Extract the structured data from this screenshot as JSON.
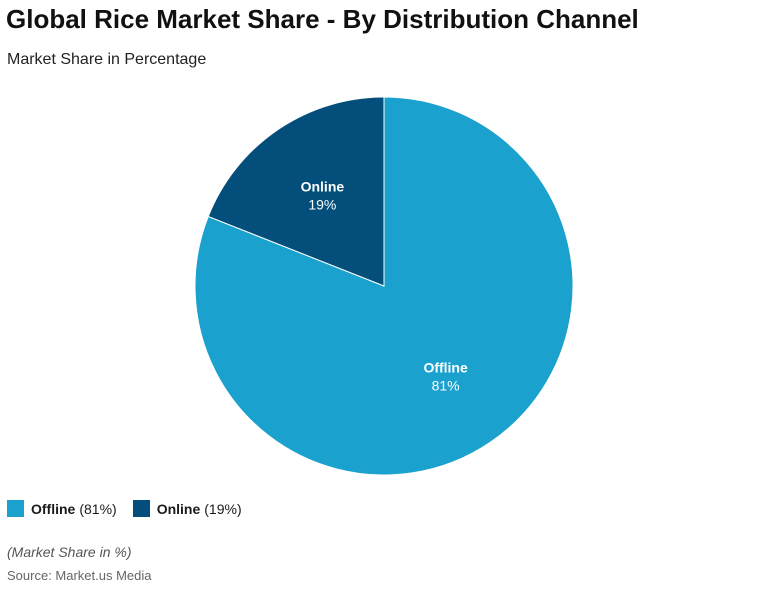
{
  "header": {
    "title": "Global Rice Market Share - By Distribution Channel",
    "subtitle": "Market Share in Percentage"
  },
  "chart_data": {
    "type": "pie",
    "title": "Global Rice Market Share - By Distribution Channel",
    "subtitle": "Market Share in Percentage",
    "unit": "%",
    "slices": [
      {
        "label": "Offline",
        "value": 81,
        "value_label": "81%",
        "color": "#1aa1ce"
      },
      {
        "label": "Online",
        "value": 19,
        "value_label": "19%",
        "color": "#034e7a"
      }
    ],
    "legend_placement": "bottom-left"
  },
  "legend": {
    "items": [
      {
        "name": "Offline",
        "value_text": "(81%)",
        "color": "#1aa1ce"
      },
      {
        "name": "Online",
        "value_text": "(19%)",
        "color": "#034e7a"
      }
    ]
  },
  "footer": {
    "note": "(Market Share in %)",
    "source": "Source: Market.us Media"
  }
}
